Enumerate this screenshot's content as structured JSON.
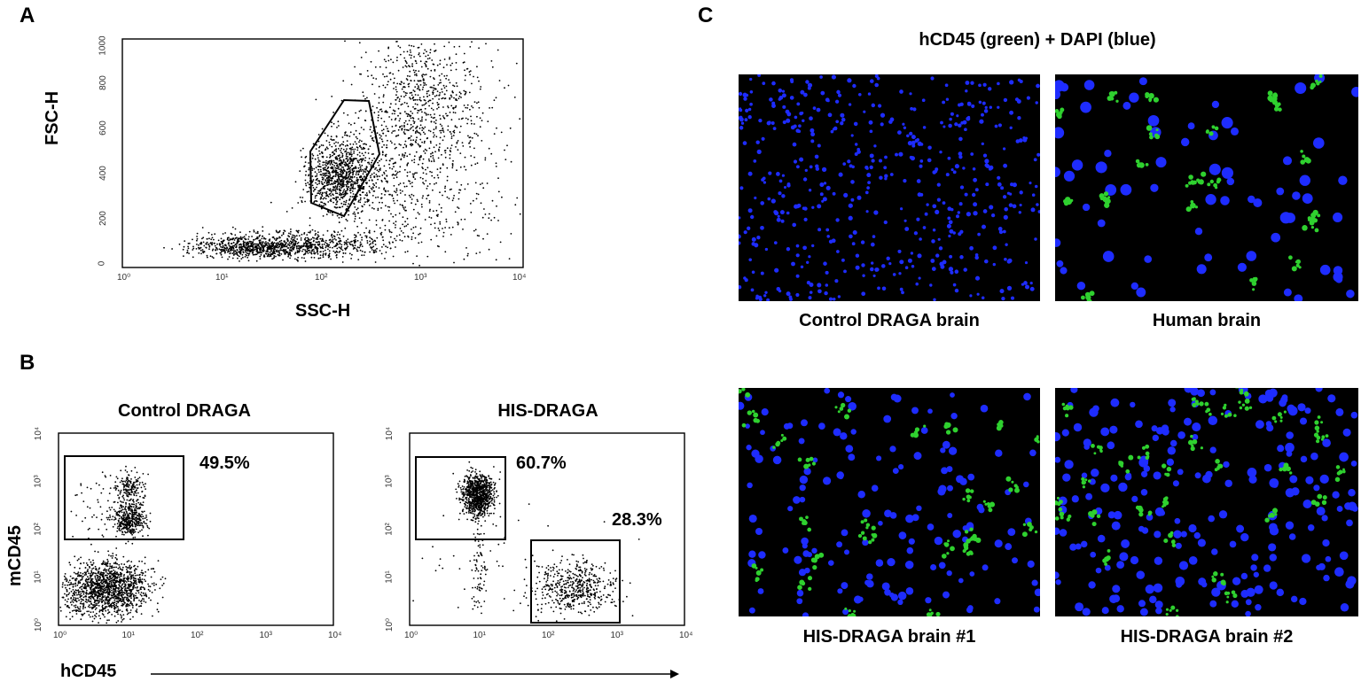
{
  "figure": {
    "panelA": {
      "letter": "A",
      "xlabel": "SSC-H",
      "ylabel": "FSC-H",
      "xticks": [
        "10⁰",
        "10¹",
        "10²",
        "10³",
        "10⁴"
      ],
      "yticks": [
        "0",
        "200",
        "400",
        "600",
        "800",
        "1000"
      ]
    },
    "panelB": {
      "letter": "B",
      "ylabel": "mCD45",
      "xlabel": "hCD45",
      "ticks": [
        "10⁰",
        "10¹",
        "10²",
        "10³",
        "10⁴"
      ],
      "plots": [
        {
          "title": "Control DRAGA",
          "gates": [
            "49.5%"
          ]
        },
        {
          "title": "HIS-DRAGA",
          "gates": [
            "60.7%",
            "28.3%"
          ]
        }
      ]
    },
    "panelC": {
      "letter": "C",
      "title": "hCD45 (green) + DAPI (blue)",
      "images": [
        {
          "caption": "Control DRAGA brain"
        },
        {
          "caption": "Human brain"
        },
        {
          "caption": "HIS-DRAGA brain #1"
        },
        {
          "caption": "HIS-DRAGA brain #2"
        }
      ]
    },
    "colors": {
      "nucleus": "#1e2cff",
      "marker": "#2fd12f",
      "background": "#000000"
    }
  }
}
